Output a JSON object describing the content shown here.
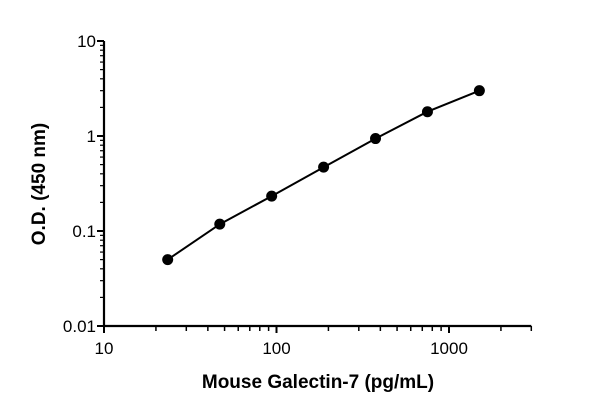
{
  "chart_data": {
    "type": "line",
    "title": "",
    "xlabel": "Mouse Galectin-7 (pg/mL)",
    "ylabel": "O.D. (450 nm)",
    "x_scale": "log",
    "y_scale": "log",
    "xlim": [
      10,
      3000
    ],
    "ylim": [
      0.01,
      10
    ],
    "x_ticks": [
      10,
      100,
      1000
    ],
    "x_tick_labels": [
      "10",
      "100",
      "1000"
    ],
    "y_ticks": [
      0.01,
      0.1,
      1,
      10
    ],
    "y_tick_labels": [
      "0.01",
      "0.1",
      "1",
      "10"
    ],
    "grid": false,
    "legend": "none",
    "series": [
      {
        "x": [
          23.4,
          46.9,
          93.75,
          187.5,
          375,
          750,
          1500
        ],
        "y": [
          0.05,
          0.118,
          0.233,
          0.47,
          0.94,
          1.8,
          3.0
        ],
        "color": "#000000",
        "marker": "circle"
      }
    ]
  }
}
